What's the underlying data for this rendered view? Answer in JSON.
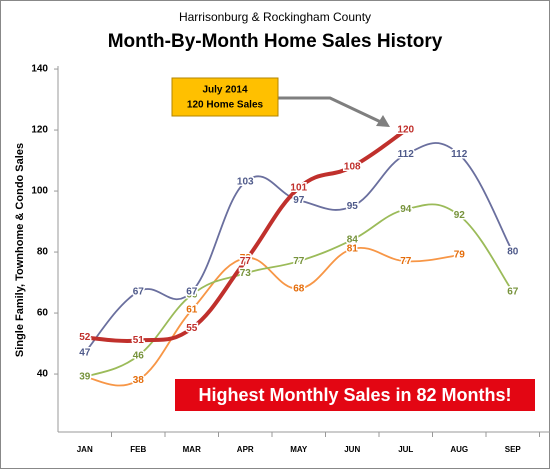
{
  "chart_data": {
    "type": "line",
    "subtitle": "Harrisonburg & Rockingham County",
    "title": "Month-By-Month Home Sales History",
    "y_label": "Single Family, Townhome & Condo Sales",
    "callout": [
      "July 2014",
      "120 Home Sales"
    ],
    "banner": "Highest Monthly Sales in 82 Months!",
    "categories": [
      "JAN",
      "FEB",
      "MAR",
      "APR",
      "MAY",
      "JUN",
      "JUL",
      "AUG",
      "SEP"
    ],
    "ylim": [
      21,
      141
    ],
    "yticks": [
      40,
      60,
      80,
      100,
      120,
      140
    ],
    "series": [
      {
        "color": "#f79646",
        "label_color": "#e46c0a",
        "width": 1.8,
        "values": [
          39,
          38,
          61,
          78,
          68,
          81,
          77,
          79,
          null
        ]
      },
      {
        "color": "#9bbb59",
        "label_color": "#77933c",
        "width": 1.8,
        "values": [
          39,
          46,
          66,
          73,
          77,
          84,
          94,
          92,
          67
        ]
      },
      {
        "color": "#6a6f9e",
        "label_color": "#4f5a8a",
        "width": 1.8,
        "values": [
          47,
          67,
          67,
          103,
          97,
          95,
          112,
          112,
          80
        ]
      },
      {
        "color": "#c0302c",
        "label_color": "#c0302c",
        "width": 4,
        "values": [
          52,
          51,
          55,
          77,
          101,
          108,
          120,
          null,
          null
        ]
      }
    ]
  }
}
